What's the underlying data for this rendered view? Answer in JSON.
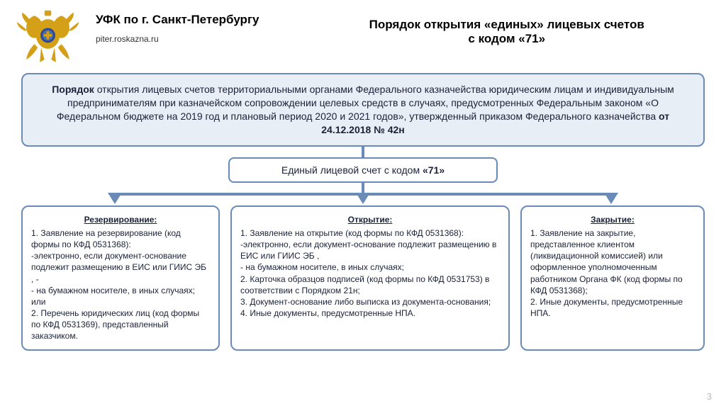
{
  "header": {
    "org_name": "УФК по г. Санкт-Петербургу",
    "site_url": "piter.roskazna.ru",
    "title_line1": "Порядок открытия «единых» лицевых счетов",
    "title_line2": "с кодом «71»"
  },
  "intro": {
    "prefix_bold": "Порядок ",
    "body1": "открытия лицевых счетов территориальными органами Федерального казначейства юридическим лицам и индивидуальным предпринимателям при казначейском сопровождении целевых средств в случаях, предусмотренных Федеральным законом «О Федеральном бюджете на 2019 год и плановый период 2020 и 2021 годов», утвержденный приказом Федерального казначейства ",
    "suffix_bold": "от 24.12.2018 № 42н"
  },
  "sub": {
    "prefix": "Единый лицевой счет с кодом ",
    "code_bold": "«71»"
  },
  "columns": {
    "reserve": {
      "title": "Резервирование:",
      "body": "1. Заявление на резервирование (код формы по КФД 0531368):\n-электронно, если документ-основание подлежит размещению в ЕИС или ГИИС ЭБ , -\n- на бумажном носителе, в иных случаях; или\n2. Перечень юридических лиц (код формы по КФД 0531369), представленный заказчиком."
    },
    "open": {
      "title": "Открытие:",
      "body": "1. Заявление на открытие (код формы по КФД 0531368):\n-электронно, если документ-основание подлежит размещению в ЕИС или ГИИС ЭБ ,\n- на бумажном носителе, в иных случаях;\n2. Карточка образцов подписей (код формы по КФД 0531753) в соответствии с Порядком 21н;\n3. Документ-основание либо выписка из документа-основания;\n4. Иные документы, предусмотренные НПА."
    },
    "close": {
      "title": "Закрытие:",
      "body": "1. Заявление на закрытие, представленное клиентом (ликвидационной комиссией) или оформленное уполномоченным работником Органа ФК (код формы по КФД 0531368);\n 2. Иные документы, предусмотренные НПА."
    }
  },
  "page_number": "3",
  "colors": {
    "border": "#6a8bb8",
    "intro_bg": "#e8eef5",
    "emblem_gold": "#d4a017",
    "emblem_blue": "#2a4b8d"
  }
}
